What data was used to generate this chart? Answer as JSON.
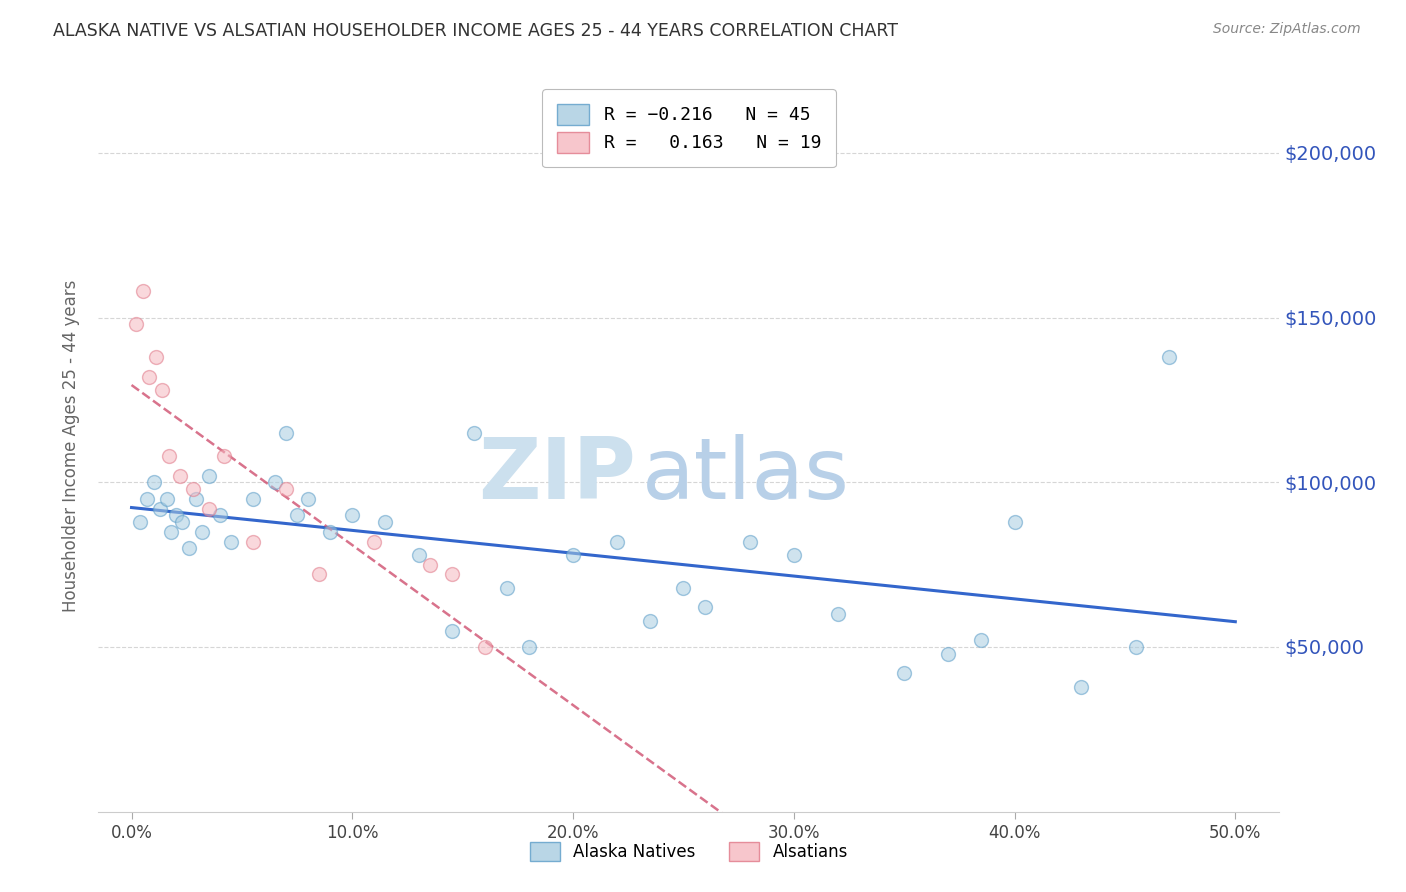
{
  "title": "ALASKA NATIVE VS ALSATIAN HOUSEHOLDER INCOME AGES 25 - 44 YEARS CORRELATION CHART",
  "source": "Source: ZipAtlas.com",
  "ylabel": "Householder Income Ages 25 - 44 years",
  "ytick_labels": [
    "$50,000",
    "$100,000",
    "$150,000",
    "$200,000"
  ],
  "ytick_vals": [
    50000,
    100000,
    150000,
    200000
  ],
  "xtick_labels": [
    "0.0%",
    "10.0%",
    "20.0%",
    "30.0%",
    "40.0%",
    "50.0%"
  ],
  "xtick_vals": [
    0.0,
    10.0,
    20.0,
    30.0,
    40.0,
    50.0
  ],
  "ylim": [
    0,
    222000
  ],
  "xlim": [
    -1.5,
    52.0
  ],
  "alaska_native_x": [
    0.4,
    0.7,
    1.0,
    1.3,
    1.6,
    1.8,
    2.0,
    2.3,
    2.6,
    2.9,
    3.2,
    3.5,
    4.0,
    4.5,
    5.5,
    6.5,
    7.0,
    7.5,
    8.0,
    9.0,
    10.0,
    11.5,
    13.0,
    14.5,
    15.5,
    17.0,
    18.0,
    20.0,
    22.0,
    23.5,
    25.0,
    26.0,
    28.0,
    30.0,
    32.0,
    35.0,
    37.0,
    38.5,
    40.0,
    43.0,
    45.5,
    47.0
  ],
  "alaska_native_y": [
    88000,
    95000,
    100000,
    92000,
    95000,
    85000,
    90000,
    88000,
    80000,
    95000,
    85000,
    102000,
    90000,
    82000,
    95000,
    100000,
    115000,
    90000,
    95000,
    85000,
    90000,
    88000,
    78000,
    55000,
    115000,
    68000,
    50000,
    78000,
    82000,
    58000,
    68000,
    62000,
    82000,
    78000,
    60000,
    42000,
    48000,
    52000,
    88000,
    38000,
    50000,
    138000
  ],
  "alsatian_x": [
    0.2,
    0.5,
    0.8,
    1.1,
    1.4,
    1.7,
    2.2,
    2.8,
    3.5,
    4.2,
    5.5,
    7.0,
    8.5,
    11.0,
    13.5,
    14.5,
    16.0
  ],
  "alsatian_y": [
    148000,
    158000,
    132000,
    138000,
    128000,
    108000,
    102000,
    98000,
    92000,
    108000,
    82000,
    98000,
    72000,
    82000,
    75000,
    72000,
    50000
  ],
  "blue_color": "#a8cce0",
  "blue_edge_color": "#5b9dc8",
  "pink_color": "#f5b8c0",
  "pink_edge_color": "#e07888",
  "blue_line_color": "#3366cc",
  "pink_line_color": "#cc4466",
  "grid_color": "#cccccc",
  "title_color": "#333333",
  "axis_label_color": "#666666",
  "ytick_color": "#3355bb",
  "watermark_zip_color": "#cce0ee",
  "watermark_atlas_color": "#b8d0e8",
  "background_color": "#ffffff",
  "marker_size": 100,
  "marker_alpha": 0.55,
  "blue_line_x_start": 0.0,
  "blue_line_x_end": 50.0,
  "pink_line_x_start": 0.0,
  "pink_line_x_end": 52.0
}
